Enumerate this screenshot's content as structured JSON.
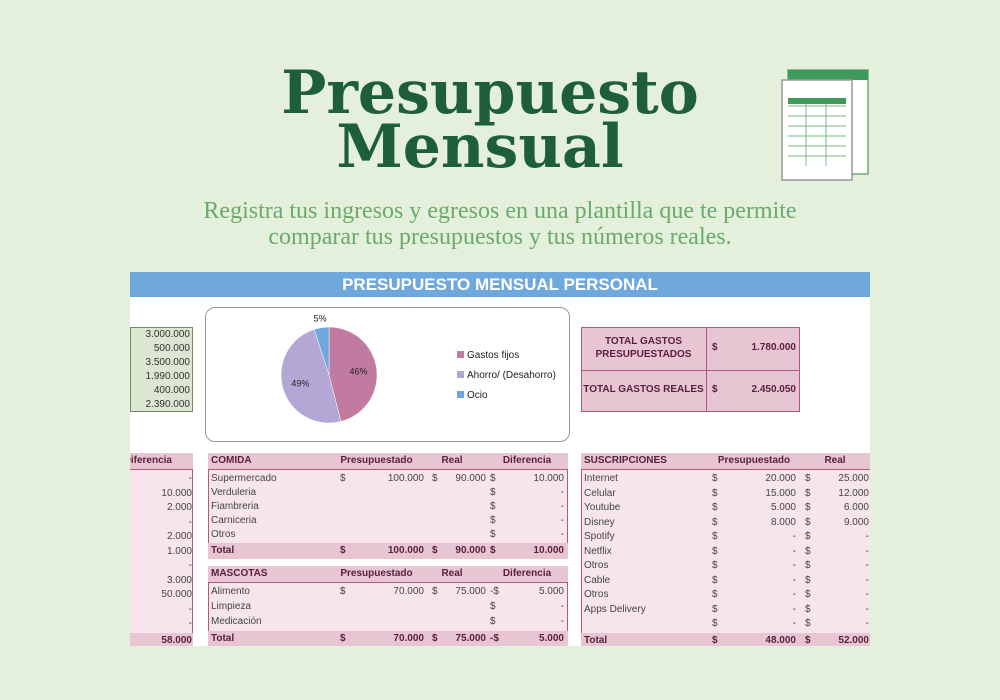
{
  "header": {
    "title_line1": "Presupuesto",
    "title_line2": "Mensual",
    "subtitle_line1": "Registra tus ingresos y egresos en una plantilla que te permite",
    "subtitle_line2": "comparar tus presupuestos y tus números reales."
  },
  "sheet": {
    "title": "PRESUPUESTO MENSUAL PERSONAL",
    "income_values": [
      "3.000.000",
      "500.000",
      "3.500.000",
      "1.990.000",
      "400.000",
      "2.390.000"
    ],
    "totals": [
      {
        "label_line1": "TOTAL GASTOS",
        "label_line2": "PRESUPUESTADOS",
        "currency": "$",
        "amount": "1.780.000"
      },
      {
        "label_line1": "TOTAL GASTOS REALES",
        "currency": "$",
        "amount": "2.450.050"
      }
    ],
    "left_table": {
      "header": [
        "Diferencia"
      ],
      "rows": [
        [
          "-"
        ],
        [
          "10.000"
        ],
        [
          "2.000"
        ],
        [
          "-"
        ],
        [
          "2.000"
        ],
        [
          "1.000"
        ],
        [
          "-"
        ],
        [
          "3.000"
        ],
        [
          "50.000"
        ],
        [
          "-"
        ],
        [
          "-"
        ]
      ],
      "total": [
        "58.000"
      ]
    },
    "comida": {
      "header": [
        "COMIDA",
        "Presupuestado",
        "Real",
        "Diferencia"
      ],
      "rows": [
        [
          "Supermercado",
          "$",
          "100.000",
          "$",
          "90.000",
          "$",
          "10.000"
        ],
        [
          "Verduleria",
          null,
          null,
          null,
          null,
          "$",
          "-"
        ],
        [
          "Fiambreria",
          null,
          null,
          null,
          null,
          "$",
          "-"
        ],
        [
          "Carniceria",
          null,
          null,
          null,
          null,
          "$",
          "-"
        ],
        [
          "Otros",
          null,
          null,
          null,
          null,
          "$",
          "-"
        ]
      ],
      "total": [
        "Total",
        "$",
        "100.000",
        "$",
        "90.000",
        "$",
        "10.000"
      ]
    },
    "mascotas": {
      "header": [
        "MASCOTAS",
        "Presupuestado",
        "Real",
        "Diferencia"
      ],
      "rows": [
        [
          "Alimento",
          "$",
          "70.000",
          "$",
          "75.000",
          "-$",
          "5.000"
        ],
        [
          "Limpieza",
          null,
          null,
          null,
          null,
          "$",
          "-"
        ],
        [
          "Medicación",
          null,
          null,
          null,
          null,
          "$",
          "-"
        ]
      ],
      "total": [
        "Total",
        "$",
        "70.000",
        "$",
        "75.000",
        "-$",
        "5.000"
      ]
    },
    "suscripciones": {
      "header": [
        "SUSCRIPCIONES",
        "Presupuestado",
        "Real"
      ],
      "rows": [
        [
          "Internet",
          "$",
          "20.000",
          "$",
          "25.000"
        ],
        [
          "Celular",
          "$",
          "15.000",
          "$",
          "12.000"
        ],
        [
          "Youtube",
          "$",
          "5.000",
          "$",
          "6.000"
        ],
        [
          "Disney",
          "$",
          "8.000",
          "$",
          "9.000"
        ],
        [
          "Spotify",
          "$",
          "-",
          "$",
          "-"
        ],
        [
          "Netflix",
          "$",
          "-",
          "$",
          "-"
        ],
        [
          "Otros",
          "$",
          "-",
          "$",
          "-"
        ],
        [
          "Cable",
          "$",
          "-",
          "$",
          "-"
        ],
        [
          "Otros",
          "$",
          "-",
          "$",
          "-"
        ],
        [
          "Apps Delivery",
          "$",
          "-",
          "$",
          "-"
        ],
        [
          null,
          "$",
          "-",
          "$",
          "-"
        ]
      ],
      "total": [
        "Total",
        "$",
        "48.000",
        "$",
        "52.000"
      ]
    }
  },
  "chart_data": {
    "type": "pie",
    "categories": [
      "Gastos fijos",
      "Ahorro/ (Desahorro)",
      "Ocio"
    ],
    "values": [
      46,
      49,
      5
    ],
    "value_labels": [
      "46%",
      "49%",
      "5%"
    ],
    "colors": [
      "#c27ba0",
      "#b4a7d6",
      "#6fa8dc"
    ]
  }
}
